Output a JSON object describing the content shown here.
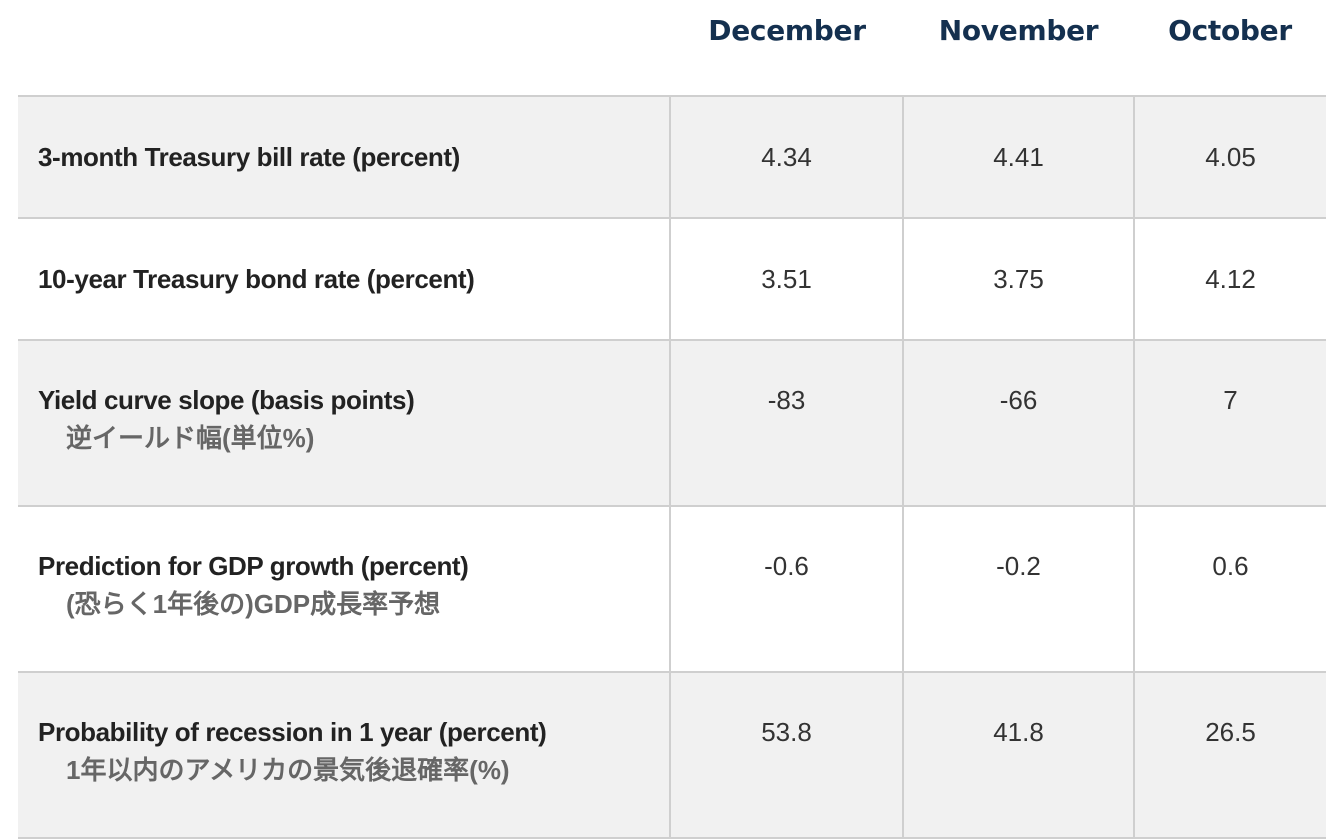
{
  "header": {
    "columns": [
      "December",
      "November",
      "October"
    ]
  },
  "rows": [
    {
      "label": "3-month Treasury bill rate (percent)",
      "label_jp": "",
      "values": [
        "4.34",
        "4.41",
        "4.05"
      ]
    },
    {
      "label": "10-year Treasury bond rate (percent)",
      "label_jp": "",
      "values": [
        "3.51",
        "3.75",
        "4.12"
      ]
    },
    {
      "label": "Yield curve slope (basis points)",
      "label_jp": "逆イールド幅(単位%)",
      "values": [
        "-83",
        "-66",
        "7"
      ]
    },
    {
      "label": "Prediction for GDP growth (percent)",
      "label_jp": "(恐らく1年後の)GDP成長率予想",
      "values": [
        "-0.6",
        "-0.2",
        "0.6"
      ]
    },
    {
      "label": "Probability of recession in 1 year (percent)",
      "label_jp": "1年以内のアメリカの景気後退確率(%)",
      "values": [
        "53.8",
        "41.8",
        "26.5"
      ]
    }
  ],
  "colors": {
    "header_text": "#14304f",
    "shaded_row": "#f1f1f1",
    "border": "#cfcfcf",
    "jp_text": "#666666"
  }
}
